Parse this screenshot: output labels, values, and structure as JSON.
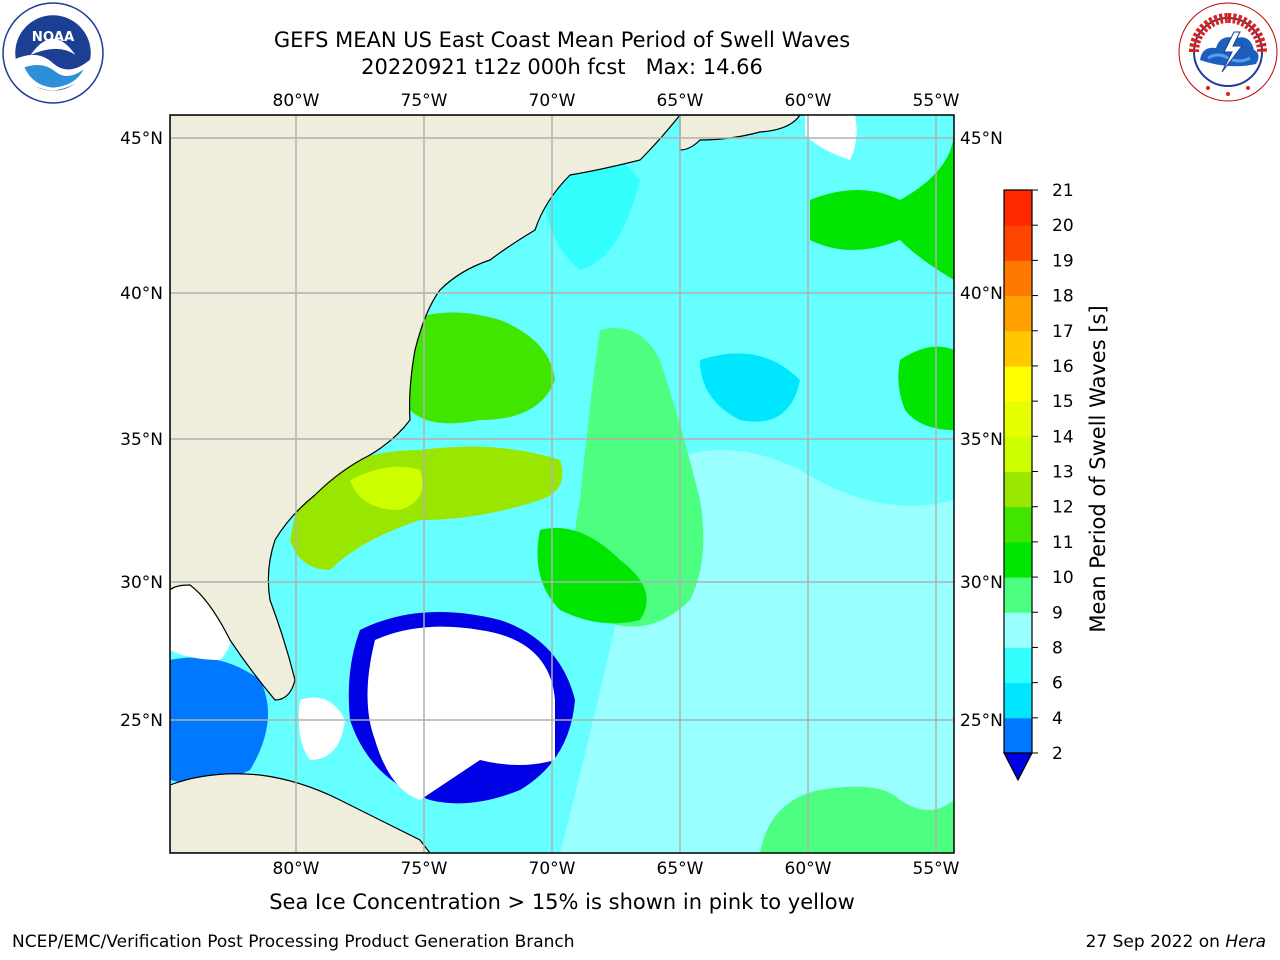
{
  "header": {
    "title_line1": "GEFS MEAN US East Coast Mean Period of Swell Waves",
    "title_line2": "20220921 t12z 000h fcst   Max: 14.66"
  },
  "logos": {
    "left": {
      "icon": "noaa-logo",
      "text": "NOAA",
      "ring_text": "NATIONAL OCEANIC AND ATMOSPHERIC ADMINISTRATION · U.S. DEPARTMENT OF COMMERCE"
    },
    "right": {
      "icon": "nws-logo",
      "ring_text": "NATIONAL WEATHER SERVICE"
    }
  },
  "map": {
    "lon_labels": [
      "80°W",
      "75°W",
      "70°W",
      "65°W",
      "60°W",
      "55°W"
    ],
    "lat_labels": [
      "45°N",
      "40°N",
      "35°N",
      "30°N",
      "25°N"
    ],
    "lon_values": [
      -80,
      -75,
      -70,
      -65,
      -60,
      -55
    ],
    "lat_values": [
      45,
      40,
      35,
      30,
      25
    ],
    "lon_range": [
      -85,
      -54.3
    ],
    "lat_range": [
      20.5,
      45.8
    ],
    "grid": true,
    "land_color": "#efeddc",
    "no_data_color": "#ffffff"
  },
  "colorbar": {
    "title": "Mean Period of Swell Waves [s]",
    "tick_labels": [
      "2",
      "4",
      "6",
      "8",
      "9",
      "10",
      "11",
      "12",
      "13",
      "14",
      "15",
      "16",
      "17",
      "18",
      "19",
      "20",
      "21"
    ],
    "colors": [
      "#0000e6",
      "#0078ff",
      "#00e6ff",
      "#33ffff",
      "#99ffff",
      "#4dff80",
      "#00e600",
      "#40e600",
      "#99e600",
      "#ccff00",
      "#e6ff00",
      "#ffff00",
      "#ffc800",
      "#ffa000",
      "#ff7800",
      "#ff4600",
      "#ff2800",
      "#ff0000"
    ],
    "extend": "min",
    "under_color": "#0000e6"
  },
  "notes": {
    "ice": "Sea Ice Concentration > 15% is shown in pink to yellow"
  },
  "footer": {
    "left": "NCEP/EMC/Verification Post Processing Product Generation Branch",
    "date": "27 Sep 2022 on ",
    "system": "Hera"
  }
}
